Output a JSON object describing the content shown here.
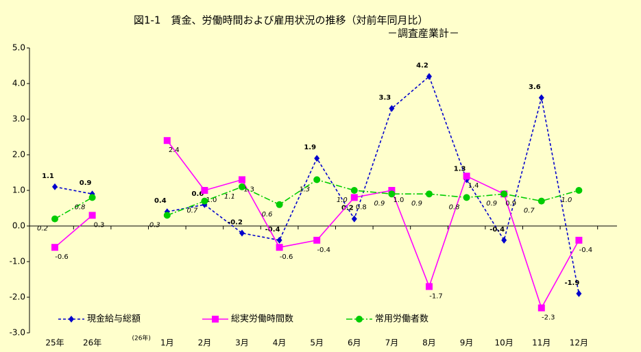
{
  "chart_data": {
    "type": "line",
    "title": "図1-1　賃金、労働時間および雇用状況の推移（対前年同月比）",
    "subtitle": "－調査産業計－",
    "categories": [
      "25年",
      "26年",
      "(26年)",
      "1月",
      "2月",
      "3月",
      "4月",
      "5月",
      "6月",
      "7月",
      "8月",
      "9月",
      "10月",
      "11月",
      "12月"
    ],
    "ylim": [
      -3,
      5
    ],
    "yticks": [
      {
        "value": -3,
        "label": "-3.0"
      },
      {
        "value": -2,
        "label": "-2.0"
      },
      {
        "value": -1,
        "label": "-1.0"
      },
      {
        "value": 0,
        "label": "0.0"
      },
      {
        "value": 1,
        "label": "1.0"
      },
      {
        "value": 2,
        "label": "2.0"
      },
      {
        "value": 3,
        "label": "3.0"
      },
      {
        "value": 4,
        "label": "4.0"
      },
      {
        "value": 5,
        "label": "5.0"
      }
    ],
    "legend": "bottom",
    "series": [
      {
        "name": "現金給与総額",
        "color": "#0000cc",
        "marker": "diamond",
        "values": [
          1.1,
          0.9,
          null,
          0.4,
          0.6,
          -0.2,
          -0.4,
          1.9,
          0.2,
          3.3,
          4.2,
          1.3,
          -0.4,
          3.6,
          -1.9
        ],
        "value_labels": [
          "1.1",
          "0.9",
          null,
          "0.4",
          "0.6",
          "-0.2",
          "-0.4",
          "1.9",
          "0.2",
          "3.3",
          "4.2",
          "1.3",
          "-0.4",
          "3.6",
          "-1.9"
        ]
      },
      {
        "name": "総実労働時間数",
        "color": "#ff00ff",
        "marker": "square",
        "values": [
          -0.6,
          0.3,
          null,
          2.4,
          1.0,
          1.3,
          -0.6,
          -0.4,
          0.8,
          1.0,
          -1.7,
          1.4,
          0.9,
          -2.3,
          -0.4
        ],
        "value_labels": [
          "-0.6",
          "0.3",
          null,
          "2.4",
          "1.0",
          "1.3",
          "-0.6",
          "-0.4",
          "0.8",
          "1.0",
          "-1.7",
          "1.4",
          "0.9",
          "-2.3",
          "-0.4"
        ]
      },
      {
        "name": "常用労働者数",
        "color": "#00cc00",
        "marker": "circle",
        "values": [
          0.2,
          0.8,
          null,
          0.3,
          0.7,
          1.1,
          0.6,
          1.3,
          1.0,
          0.9,
          0.9,
          0.8,
          0.9,
          0.7,
          1.0
        ],
        "value_labels": [
          "0.2",
          "0.8",
          null,
          "0.3",
          "0.7",
          "1.1",
          "0.6",
          "1.3",
          "1.0",
          "0.9",
          "0.9",
          "0.8",
          "0.9",
          "0.7",
          "1.0"
        ]
      }
    ]
  }
}
